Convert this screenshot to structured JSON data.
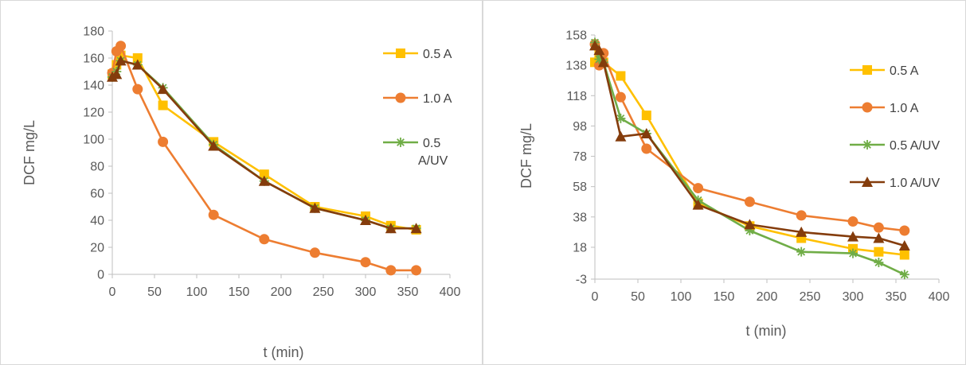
{
  "chart_data": [
    {
      "type": "line",
      "title": "",
      "xlabel": "t (min)",
      "ylabel": "DCF mg/L",
      "xlim": [
        0,
        400
      ],
      "ylim": [
        0,
        180
      ],
      "xticks": [
        0,
        50,
        100,
        150,
        200,
        250,
        300,
        350,
        400
      ],
      "yticks": [
        0,
        20,
        40,
        60,
        80,
        100,
        120,
        140,
        160,
        180
      ],
      "grid": false,
      "legend": "right",
      "series": [
        {
          "name": "0.5 A",
          "color": "#FFC000",
          "marker": "square",
          "x": [
            0,
            5,
            10,
            30,
            60,
            120,
            180,
            240,
            300,
            330,
            360
          ],
          "y": [
            148,
            155,
            162,
            160,
            125,
            98,
            74,
            50,
            43,
            36,
            33
          ]
        },
        {
          "name": "1.0 A",
          "color": "#ED7D31",
          "marker": "circle",
          "x": [
            0,
            5,
            10,
            30,
            60,
            120,
            180,
            240,
            300,
            330,
            360
          ],
          "y": [
            149,
            165,
            169,
            137,
            98,
            44,
            26,
            16,
            9,
            3,
            3
          ]
        },
        {
          "name": "0.5\nA/UV",
          "color": "#70AD47",
          "marker": "star",
          "x": [
            0,
            5,
            10,
            30,
            60,
            120,
            180,
            240,
            300,
            330,
            360
          ],
          "y": [
            146,
            150,
            158,
            155,
            138,
            96,
            69,
            49,
            40,
            34,
            34
          ]
        },
        {
          "name": "",
          "color": "#843C0C",
          "marker": "triangle",
          "x": [
            0,
            5,
            10,
            30,
            60,
            120,
            180,
            240,
            300,
            330,
            360
          ],
          "y": [
            146,
            148,
            158,
            155,
            137,
            95,
            69,
            49,
            40,
            34,
            34
          ]
        }
      ]
    },
    {
      "type": "line",
      "title": "",
      "xlabel": "t (min)",
      "ylabel": "DCF mg/L",
      "xlim": [
        0,
        400
      ],
      "ylim": [
        -3,
        158
      ],
      "xticks": [
        0,
        50,
        100,
        150,
        200,
        250,
        300,
        350,
        400
      ],
      "yticks": [
        -3,
        18,
        38,
        58,
        78,
        98,
        118,
        138,
        158
      ],
      "grid": false,
      "legend": "right",
      "series": [
        {
          "name": "0.5 A",
          "color": "#FFC000",
          "marker": "square",
          "x": [
            0,
            5,
            10,
            30,
            60,
            120,
            180,
            240,
            300,
            330,
            360
          ],
          "y": [
            140,
            145,
            140,
            131,
            105,
            47,
            32,
            24,
            17,
            15,
            13
          ]
        },
        {
          "name": "1.0 A",
          "color": "#ED7D31",
          "marker": "circle",
          "x": [
            0,
            5,
            10,
            30,
            60,
            120,
            180,
            240,
            300,
            330,
            360
          ],
          "y": [
            152,
            138,
            146,
            117,
            83,
            57,
            48,
            39,
            35,
            31,
            29
          ]
        },
        {
          "name": "0.5 A/UV",
          "color": "#70AD47",
          "marker": "star",
          "x": [
            0,
            5,
            10,
            30,
            60,
            120,
            180,
            240,
            300,
            330,
            360
          ],
          "y": [
            153,
            142,
            140,
            103,
            93,
            49,
            29,
            15,
            14,
            8,
            0
          ]
        },
        {
          "name": "1.0 A/UV",
          "color": "#843C0C",
          "marker": "triangle",
          "x": [
            0,
            5,
            10,
            30,
            60,
            120,
            180,
            240,
            300,
            330,
            360
          ],
          "y": [
            151,
            148,
            140,
            91,
            93,
            46,
            33,
            28,
            25,
            24,
            19
          ]
        }
      ]
    }
  ]
}
